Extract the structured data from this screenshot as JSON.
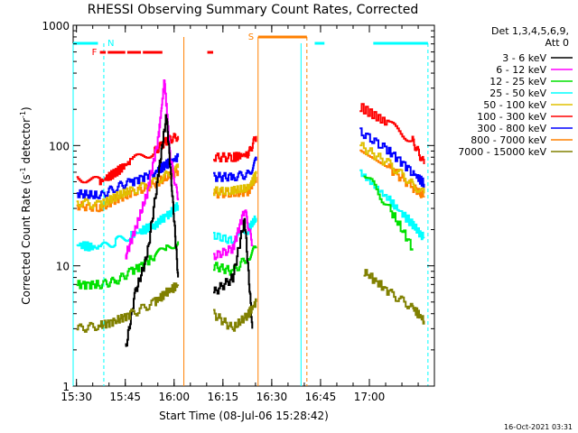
{
  "chart_data": {
    "type": "line",
    "title": "RHESSI Observing Summary Count Rates, Corrected",
    "xlabel": "Start Time (08-Jul-06 15:28:42)",
    "ylabel_main": "Corrected Count Rate (s",
    "ylabel_sup1": "-1",
    "ylabel_mid": " detector",
    "ylabel_sup2": "-1",
    "ylabel_end": ")",
    "y_scale": "log",
    "ylim": [
      1,
      1000
    ],
    "xlim_minutes": [
      15.483,
      17.333
    ],
    "x_ticks": [
      "15:30",
      "15:45",
      "16:00",
      "16:15",
      "16:30",
      "16:45",
      "17:00"
    ],
    "x_tick_values_hours": [
      15.5,
      15.75,
      16.0,
      16.25,
      16.5,
      16.75,
      17.0
    ],
    "y_ticks": [
      "1000",
      "100",
      "10",
      "1"
    ],
    "y_tick_values": [
      1000,
      100,
      10,
      1
    ],
    "legend": {
      "placement": "right",
      "title_line1": "Det 1,3,4,5,6,9,",
      "title_line2": "Att 0",
      "entries": [
        {
          "label": "3 - 6 keV",
          "color": "#000000"
        },
        {
          "label": "6 - 12 keV",
          "color": "#ff00ff"
        },
        {
          "label": "12 - 25 keV",
          "color": "#00e000"
        },
        {
          "label": "25 - 50 keV",
          "color": "#00ffff"
        },
        {
          "label": "50 - 100 keV",
          "color": "#e0c000"
        },
        {
          "label": "100 - 300 keV",
          "color": "#ff0000"
        },
        {
          "label": "300 - 800 keV",
          "color": "#0000ff"
        },
        {
          "label": "800 - 7000 keV",
          "color": "#ff8000"
        },
        {
          "label": "7000 - 15000 keV",
          "color": "#808000"
        }
      ]
    },
    "flags": [
      {
        "label": "N",
        "color": "#00ffff"
      },
      {
        "label": "F",
        "color": "#ff0000"
      },
      {
        "label": "S",
        "color": "#ff8000"
      }
    ],
    "series": [
      {
        "color": "#ff0000",
        "segments": [
          [
            [
              15.5,
              55
            ],
            [
              15.62,
              50
            ],
            [
              15.7,
              60
            ],
            [
              15.78,
              75
            ],
            [
              15.9,
              90
            ],
            [
              15.96,
              110
            ],
            [
              16.02,
              120
            ]
          ],
          [
            [
              16.2,
              80
            ],
            [
              16.3,
              80
            ],
            [
              16.38,
              85
            ],
            [
              16.42,
              120
            ]
          ],
          [
            [
              16.95,
              210
            ],
            [
              17.1,
              150
            ],
            [
              17.22,
              110
            ],
            [
              17.28,
              70
            ]
          ]
        ]
      },
      {
        "color": "#0000ff",
        "segments": [
          [
            [
              15.5,
              40
            ],
            [
              15.62,
              38
            ],
            [
              15.7,
              45
            ],
            [
              15.78,
              50
            ],
            [
              15.9,
              60
            ],
            [
              15.96,
              70
            ],
            [
              16.02,
              80
            ]
          ],
          [
            [
              16.2,
              55
            ],
            [
              16.3,
              55
            ],
            [
              16.38,
              58
            ],
            [
              16.42,
              75
            ]
          ],
          [
            [
              16.95,
              130
            ],
            [
              17.1,
              90
            ],
            [
              17.22,
              60
            ],
            [
              17.28,
              48
            ]
          ]
        ]
      },
      {
        "color": "#ff8000",
        "segments": [
          [
            [
              15.5,
              32
            ],
            [
              15.62,
              30
            ],
            [
              15.7,
              36
            ],
            [
              15.78,
              40
            ],
            [
              15.9,
              48
            ],
            [
              15.96,
              55
            ],
            [
              16.02,
              62
            ]
          ],
          [
            [
              16.2,
              40
            ],
            [
              16.3,
              40
            ],
            [
              16.38,
              42
            ],
            [
              16.42,
              55
            ]
          ],
          [
            [
              16.95,
              95
            ],
            [
              17.1,
              65
            ],
            [
              17.22,
              45
            ],
            [
              17.28,
              38
            ]
          ]
        ]
      },
      {
        "color": "#e0c000",
        "segments": [
          [
            [
              15.5,
              34
            ],
            [
              15.62,
              32
            ],
            [
              15.7,
              38
            ],
            [
              15.78,
              42
            ],
            [
              15.9,
              50
            ],
            [
              15.96,
              58
            ],
            [
              16.02,
              65
            ]
          ],
          [
            [
              16.2,
              42
            ],
            [
              16.3,
              42
            ],
            [
              16.38,
              44
            ],
            [
              16.42,
              58
            ]
          ],
          [
            [
              16.95,
              100
            ],
            [
              17.1,
              70
            ],
            [
              17.22,
              48
            ],
            [
              17.28,
              40
            ]
          ]
        ]
      },
      {
        "color": "#00ffff",
        "segments": [
          [
            [
              15.5,
              15
            ],
            [
              15.62,
              14
            ],
            [
              15.7,
              16
            ],
            [
              15.78,
              18
            ],
            [
              15.9,
              22
            ],
            [
              15.96,
              26
            ],
            [
              16.02,
              32
            ]
          ],
          [
            [
              16.2,
              18
            ],
            [
              16.3,
              16
            ],
            [
              16.38,
              20
            ],
            [
              16.42,
              25
            ]
          ],
          [
            [
              16.95,
              60
            ],
            [
              17.1,
              35
            ],
            [
              17.22,
              22
            ],
            [
              17.28,
              17
            ]
          ]
        ]
      },
      {
        "color": "#ff00ff",
        "segments": [
          [
            [
              15.75,
              12
            ],
            [
              15.8,
              20
            ],
            [
              15.86,
              40
            ],
            [
              15.92,
              120
            ],
            [
              15.95,
              350
            ],
            [
              15.98,
              80
            ],
            [
              16.02,
              35
            ]
          ],
          [
            [
              16.2,
              12
            ],
            [
              16.3,
              14
            ],
            [
              16.36,
              30
            ],
            [
              16.4,
              15
            ]
          ]
        ]
      },
      {
        "color": "#00e000",
        "segments": [
          [
            [
              15.5,
              7
            ],
            [
              15.62,
              7
            ],
            [
              15.7,
              7.5
            ],
            [
              15.78,
              9
            ],
            [
              15.9,
              12
            ],
            [
              15.96,
              14
            ],
            [
              16.02,
              16
            ]
          ],
          [
            [
              16.2,
              10
            ],
            [
              16.3,
              9
            ],
            [
              16.38,
              12
            ],
            [
              16.42,
              14
            ]
          ],
          [
            [
              16.97,
              60
            ],
            [
              17.1,
              30
            ],
            [
              17.22,
              14
            ]
          ]
        ]
      },
      {
        "color": "#000000",
        "segments": [
          [
            [
              15.75,
              2
            ],
            [
              15.8,
              6
            ],
            [
              15.86,
              12
            ],
            [
              15.92,
              60
            ],
            [
              15.96,
              180
            ],
            [
              15.99,
              40
            ],
            [
              16.02,
              8
            ]
          ],
          [
            [
              16.2,
              6
            ],
            [
              16.3,
              8
            ],
            [
              16.36,
              25
            ],
            [
              16.4,
              3
            ]
          ]
        ]
      },
      {
        "color": "#808000",
        "segments": [
          [
            [
              15.5,
              3
            ],
            [
              15.62,
              3.2
            ],
            [
              15.7,
              3.5
            ],
            [
              15.78,
              4
            ],
            [
              15.9,
              5
            ],
            [
              15.96,
              6
            ],
            [
              16.02,
              7
            ]
          ],
          [
            [
              16.2,
              4
            ],
            [
              16.3,
              3
            ],
            [
              16.38,
              4
            ],
            [
              16.42,
              5
            ]
          ],
          [
            [
              16.97,
              9
            ],
            [
              17.1,
              6
            ],
            [
              17.22,
              4.5
            ],
            [
              17.28,
              3.5
            ]
          ]
        ]
      }
    ]
  },
  "footer": {
    "timestamp": "16-Oct-2021 03:31"
  }
}
